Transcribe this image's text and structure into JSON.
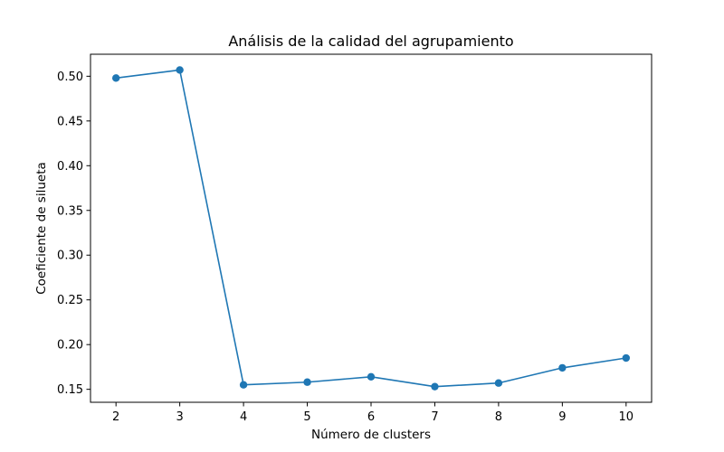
{
  "chart_data": {
    "type": "line",
    "title": "Análisis de la calidad del agrupamiento",
    "xlabel": "Número de clusters",
    "ylabel": "Coeficiente de silueta",
    "x": [
      2,
      3,
      4,
      5,
      6,
      7,
      8,
      9,
      10
    ],
    "series": [
      {
        "values": [
          0.498,
          0.507,
          0.155,
          0.158,
          0.164,
          0.153,
          0.157,
          0.174,
          0.185
        ],
        "color": "#1f77b4",
        "marker": "circle"
      }
    ],
    "xticks": [
      2,
      3,
      4,
      5,
      6,
      7,
      8,
      9,
      10
    ],
    "yticks": [
      "0.15",
      "0.20",
      "0.25",
      "0.30",
      "0.35",
      "0.40",
      "0.45",
      "0.50"
    ],
    "xlim": [
      1.6,
      10.4
    ],
    "ylim": [
      0.1355,
      0.5246
    ],
    "grid": false,
    "legend": "none"
  }
}
